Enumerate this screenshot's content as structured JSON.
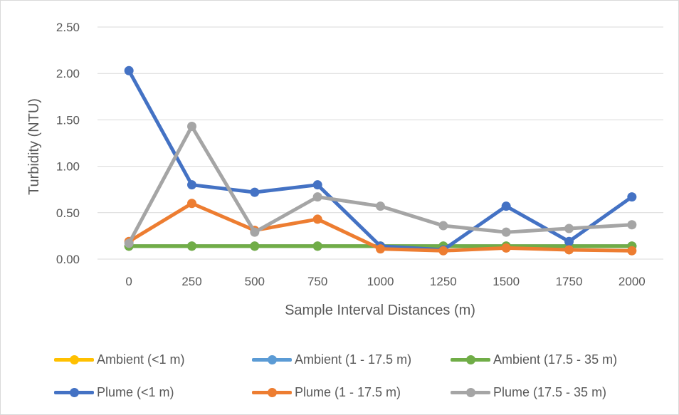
{
  "chart_data": {
    "type": "line",
    "title": "",
    "xlabel": "Sample Interval Distances (m)",
    "ylabel": "Turbidity (NTU)",
    "categories": [
      "0",
      "250",
      "500",
      "750",
      "1000",
      "1250",
      "1500",
      "1750",
      "2000"
    ],
    "y_ticks": [
      "0.00",
      "0.50",
      "1.00",
      "1.50",
      "2.00",
      "2.50"
    ],
    "ylim": [
      0,
      2.5
    ],
    "grid": true,
    "legend_position": "bottom",
    "series": [
      {
        "name": "Ambient (<1 m)",
        "color": "#FFC000",
        "values": [
          0.14,
          0.14,
          0.14,
          0.14,
          0.14,
          0.14,
          0.14,
          0.14,
          0.14
        ]
      },
      {
        "name": "Ambient (1 - 17.5 m)",
        "color": "#5B9BD5",
        "values": [
          0.14,
          0.14,
          0.14,
          0.14,
          0.14,
          0.14,
          0.14,
          0.14,
          0.14
        ]
      },
      {
        "name": "Ambient (17.5 - 35 m)",
        "color": "#70AD47",
        "values": [
          0.14,
          0.14,
          0.14,
          0.14,
          0.14,
          0.14,
          0.14,
          0.14,
          0.14
        ]
      },
      {
        "name": "Plume (<1 m)",
        "color": "#4472C4",
        "values": [
          2.03,
          0.8,
          0.72,
          0.8,
          0.14,
          0.1,
          0.57,
          0.19,
          0.67
        ]
      },
      {
        "name": "Plume (1 - 17.5 m)",
        "color": "#ED7D31",
        "values": [
          0.19,
          0.6,
          0.31,
          0.43,
          0.11,
          0.09,
          0.12,
          0.1,
          0.09
        ]
      },
      {
        "name": "Plume (17.5 - 35 m)",
        "color": "#A5A5A5",
        "values": [
          0.17,
          1.43,
          0.29,
          0.67,
          0.57,
          0.36,
          0.29,
          0.33,
          0.37
        ]
      }
    ]
  }
}
